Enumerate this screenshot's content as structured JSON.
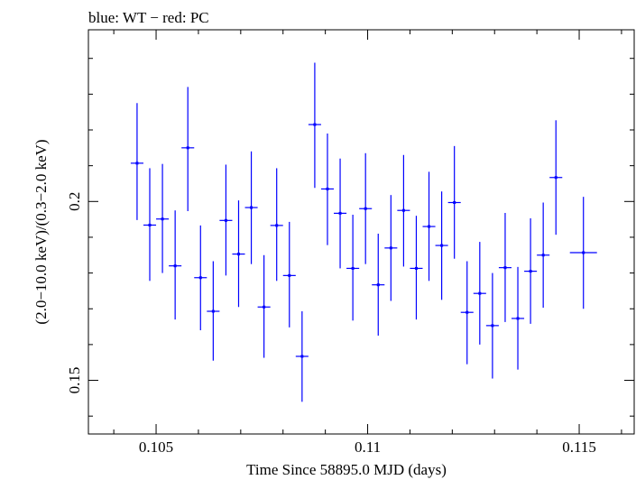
{
  "chart_data": {
    "type": "scatter",
    "title": "blue: WT − red: PC",
    "xlabel": "Time Since 58895.0 MJD (days)",
    "ylabel": "(2.0−10.0 keV)/(0.3−2.0 keV)",
    "xlim": [
      0.1034,
      0.1163
    ],
    "ylim": [
      0.135,
      0.248
    ],
    "x_ticks": [
      0.105,
      0.11,
      0.115
    ],
    "x_tick_labels": [
      "0.105",
      "0.11",
      "0.115"
    ],
    "y_ticks": [
      0.15,
      0.2
    ],
    "y_tick_labels": [
      "0.15",
      "0.2"
    ],
    "grid": false,
    "series": [
      {
        "color": "#0000ff",
        "points": [
          {
            "x": 0.10455,
            "y": 0.2107,
            "xerr": 0.00015,
            "ylo": 0.1948,
            "yhi": 0.2275
          },
          {
            "x": 0.10485,
            "y": 0.1934,
            "xerr": 0.00015,
            "ylo": 0.1778,
            "yhi": 0.2093
          },
          {
            "x": 0.10515,
            "y": 0.1951,
            "xerr": 0.00015,
            "ylo": 0.18,
            "yhi": 0.2105
          },
          {
            "x": 0.10545,
            "y": 0.182,
            "xerr": 0.00015,
            "ylo": 0.167,
            "yhi": 0.1975
          },
          {
            "x": 0.10575,
            "y": 0.215,
            "xerr": 0.00015,
            "ylo": 0.1973,
            "yhi": 0.232
          },
          {
            "x": 0.10605,
            "y": 0.1787,
            "xerr": 0.00015,
            "ylo": 0.164,
            "yhi": 0.1933
          },
          {
            "x": 0.10635,
            "y": 0.1693,
            "xerr": 0.00015,
            "ylo": 0.1555,
            "yhi": 0.1833
          },
          {
            "x": 0.10665,
            "y": 0.1947,
            "xerr": 0.00015,
            "ylo": 0.1793,
            "yhi": 0.2103
          },
          {
            "x": 0.10695,
            "y": 0.1853,
            "xerr": 0.00015,
            "ylo": 0.1705,
            "yhi": 0.2003
          },
          {
            "x": 0.10725,
            "y": 0.1983,
            "xerr": 0.00015,
            "ylo": 0.1825,
            "yhi": 0.214
          },
          {
            "x": 0.10755,
            "y": 0.1705,
            "xerr": 0.00015,
            "ylo": 0.1563,
            "yhi": 0.185
          },
          {
            "x": 0.10785,
            "y": 0.1933,
            "xerr": 0.00015,
            "ylo": 0.1778,
            "yhi": 0.2093
          },
          {
            "x": 0.10815,
            "y": 0.1793,
            "xerr": 0.00015,
            "ylo": 0.1648,
            "yhi": 0.1943
          },
          {
            "x": 0.10845,
            "y": 0.1567,
            "xerr": 0.00015,
            "ylo": 0.144,
            "yhi": 0.1693
          },
          {
            "x": 0.10875,
            "y": 0.2215,
            "xerr": 0.00015,
            "ylo": 0.2038,
            "yhi": 0.2388
          },
          {
            "x": 0.10905,
            "y": 0.2035,
            "xerr": 0.00015,
            "ylo": 0.1878,
            "yhi": 0.219
          },
          {
            "x": 0.10935,
            "y": 0.1967,
            "xerr": 0.00015,
            "ylo": 0.1813,
            "yhi": 0.212
          },
          {
            "x": 0.10965,
            "y": 0.1813,
            "xerr": 0.00015,
            "ylo": 0.1667,
            "yhi": 0.1963
          },
          {
            "x": 0.10995,
            "y": 0.198,
            "xerr": 0.00015,
            "ylo": 0.1825,
            "yhi": 0.2135
          },
          {
            "x": 0.11025,
            "y": 0.1767,
            "xerr": 0.00015,
            "ylo": 0.1625,
            "yhi": 0.191
          },
          {
            "x": 0.11055,
            "y": 0.187,
            "xerr": 0.00015,
            "ylo": 0.1722,
            "yhi": 0.2018
          },
          {
            "x": 0.11085,
            "y": 0.1975,
            "xerr": 0.00015,
            "ylo": 0.1818,
            "yhi": 0.213
          },
          {
            "x": 0.11115,
            "y": 0.1813,
            "xerr": 0.00015,
            "ylo": 0.167,
            "yhi": 0.196
          },
          {
            "x": 0.11145,
            "y": 0.193,
            "xerr": 0.00015,
            "ylo": 0.1778,
            "yhi": 0.2083
          },
          {
            "x": 0.11175,
            "y": 0.1877,
            "xerr": 0.00015,
            "ylo": 0.1725,
            "yhi": 0.2028
          },
          {
            "x": 0.11205,
            "y": 0.1997,
            "xerr": 0.00015,
            "ylo": 0.184,
            "yhi": 0.2155
          },
          {
            "x": 0.11235,
            "y": 0.169,
            "xerr": 0.00015,
            "ylo": 0.1545,
            "yhi": 0.1833
          },
          {
            "x": 0.11265,
            "y": 0.1743,
            "xerr": 0.00015,
            "ylo": 0.16,
            "yhi": 0.1887
          },
          {
            "x": 0.11295,
            "y": 0.1653,
            "xerr": 0.00015,
            "ylo": 0.1505,
            "yhi": 0.18
          },
          {
            "x": 0.11325,
            "y": 0.1815,
            "xerr": 0.00015,
            "ylo": 0.1663,
            "yhi": 0.1968
          },
          {
            "x": 0.11355,
            "y": 0.1673,
            "xerr": 0.00015,
            "ylo": 0.153,
            "yhi": 0.1817
          },
          {
            "x": 0.11385,
            "y": 0.1805,
            "xerr": 0.00015,
            "ylo": 0.1658,
            "yhi": 0.1953
          },
          {
            "x": 0.11415,
            "y": 0.185,
            "xerr": 0.00015,
            "ylo": 0.1703,
            "yhi": 0.1997
          },
          {
            "x": 0.11445,
            "y": 0.2067,
            "xerr": 0.00015,
            "ylo": 0.1907,
            "yhi": 0.2227
          },
          {
            "x": 0.1151,
            "y": 0.1857,
            "xerr": 0.00032,
            "ylo": 0.17,
            "yhi": 0.2013
          }
        ]
      }
    ]
  }
}
